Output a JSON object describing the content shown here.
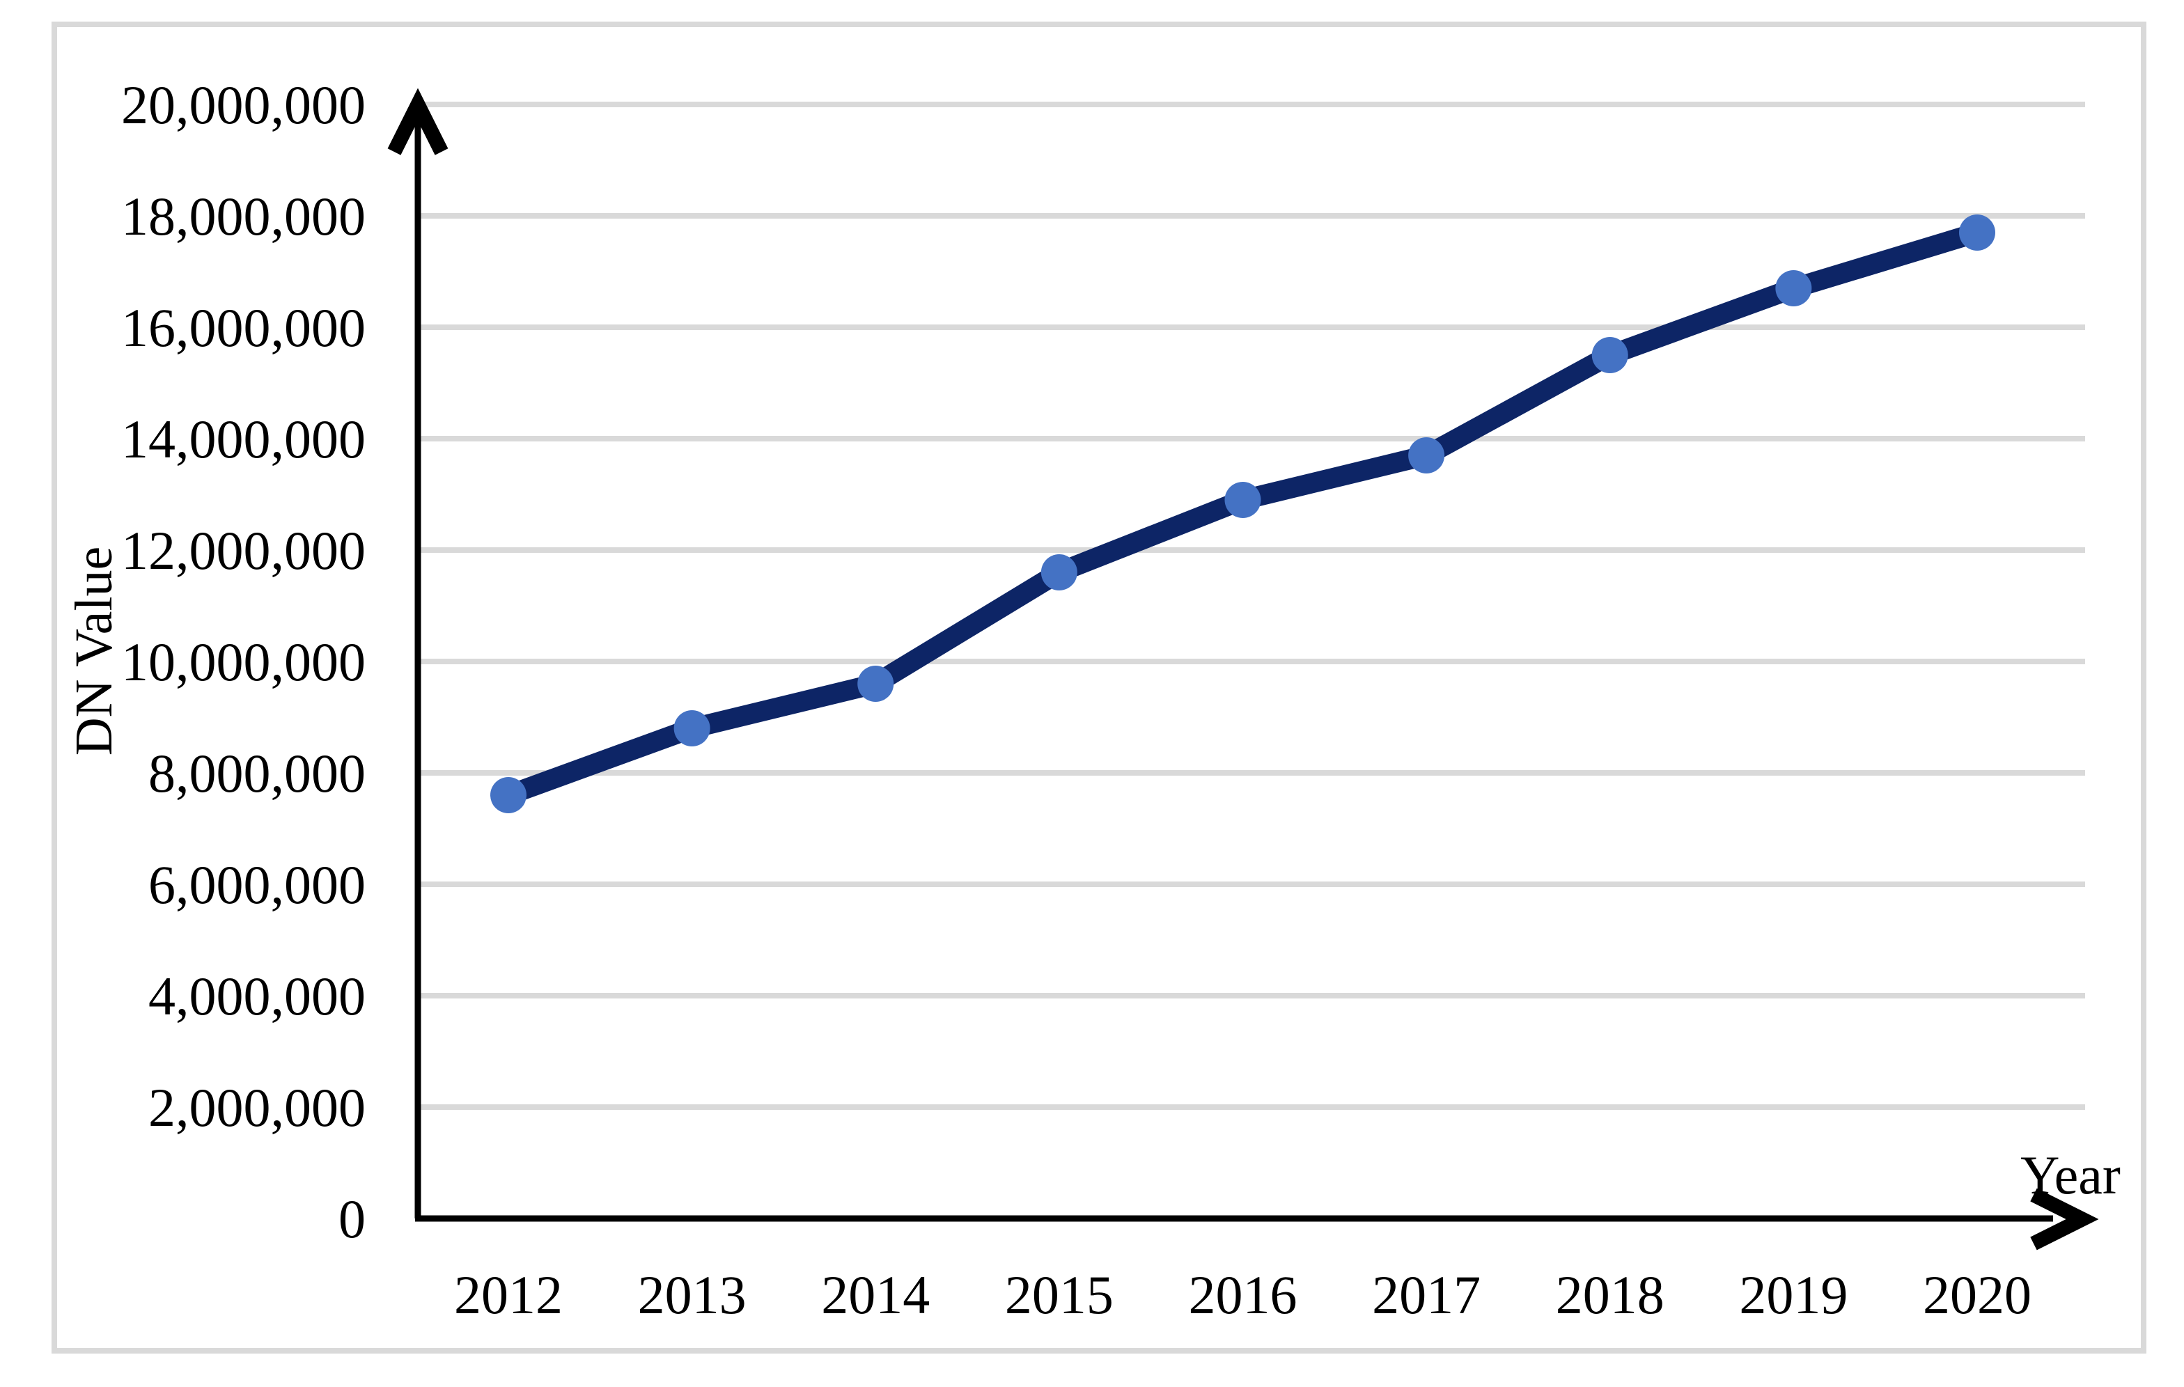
{
  "figure": {
    "background": "#ffffff",
    "border_color": "#d9d9d9"
  },
  "chart_data": {
    "type": "line",
    "title": "",
    "xlabel": "Year",
    "ylabel": "DN Value",
    "categories": [
      "2012",
      "2013",
      "2014",
      "2015",
      "2016",
      "2017",
      "2018",
      "2019",
      "2020"
    ],
    "series": [
      {
        "name": "DN Value",
        "values": [
          7600000,
          8800000,
          9600000,
          11600000,
          12900000,
          13700000,
          15500000,
          16700000,
          17700000
        ]
      }
    ],
    "ylim": [
      0,
      20000000
    ],
    "ytick_step": 2000000,
    "y_tick_labels": [
      "20,000,000",
      "18,000,000",
      "16,000,000",
      "14,000,000",
      "12,000,000",
      "10,000,000",
      "8,000,000",
      "6,000,000",
      "4,000,000",
      "2,000,000",
      "0"
    ],
    "grid": "horizontal",
    "legend_position": "none",
    "line_color": "#0d2566",
    "marker_color": "#4472c4",
    "marker_style": "circle",
    "gridline_color": "#d9d9d9",
    "axis_color": "#000000"
  }
}
